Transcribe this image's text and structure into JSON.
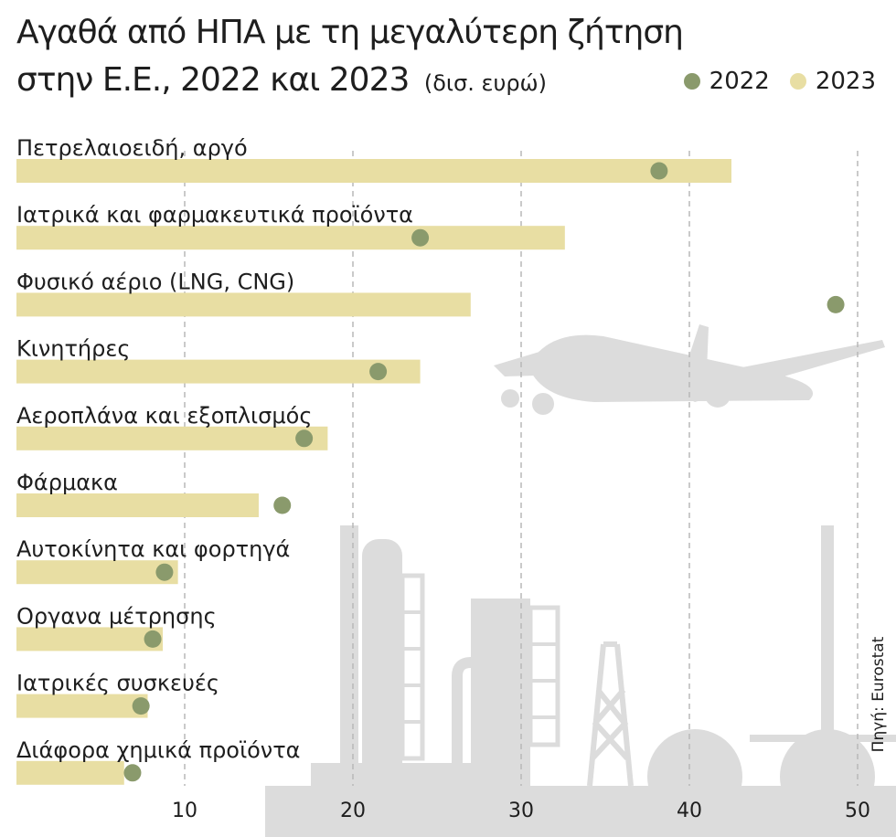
{
  "title": {
    "line1": "Αγαθά από ΗΠΑ με τη μεγαλύτερη ζήτηση",
    "line2": "στην Ε.Ε., 2022 και 2023",
    "unit": "(δισ. ευρώ)"
  },
  "legend": [
    {
      "label": "2022",
      "color": "#8a9a6c"
    },
    {
      "label": "2023",
      "color": "#e8dea3"
    }
  ],
  "source": "Πηγή: Eurostat",
  "decoration": {
    "icons": [
      "airplane-icon",
      "refinery-icon"
    ],
    "color": "#dcdcdc"
  },
  "chart_data": {
    "type": "bar",
    "orientation": "horizontal",
    "categories": [
      "Πετρελαιοειδή, αργό",
      "Ιατρικά και φαρμακευτικά προϊόντα",
      "Φυσικό αέριο (LNG, CNG)",
      "Κινητήρες",
      "Αεροπλάνα και εξοπλισμός",
      "Φάρμακα",
      "Αυτοκίνητα και φορτηγά",
      "Οργανα μέτρησης",
      "Ιατρικές συσκευές",
      "Διάφορα χημικά προϊόντα"
    ],
    "series": [
      {
        "name": "2023",
        "style": "bar",
        "color": "#e8dea3",
        "values": [
          42.5,
          32.6,
          27.0,
          24.0,
          18.5,
          14.4,
          9.6,
          8.7,
          7.8,
          6.4
        ]
      },
      {
        "name": "2022",
        "style": "dot",
        "color": "#8a9a6c",
        "values": [
          38.2,
          24.0,
          48.7,
          21.5,
          17.1,
          15.8,
          8.8,
          8.1,
          7.4,
          6.9
        ]
      }
    ],
    "xlim": [
      0,
      50
    ],
    "xticks": [
      10,
      20,
      30,
      40,
      50
    ],
    "grid": "vertical dashed",
    "legend_position": "top-right"
  }
}
